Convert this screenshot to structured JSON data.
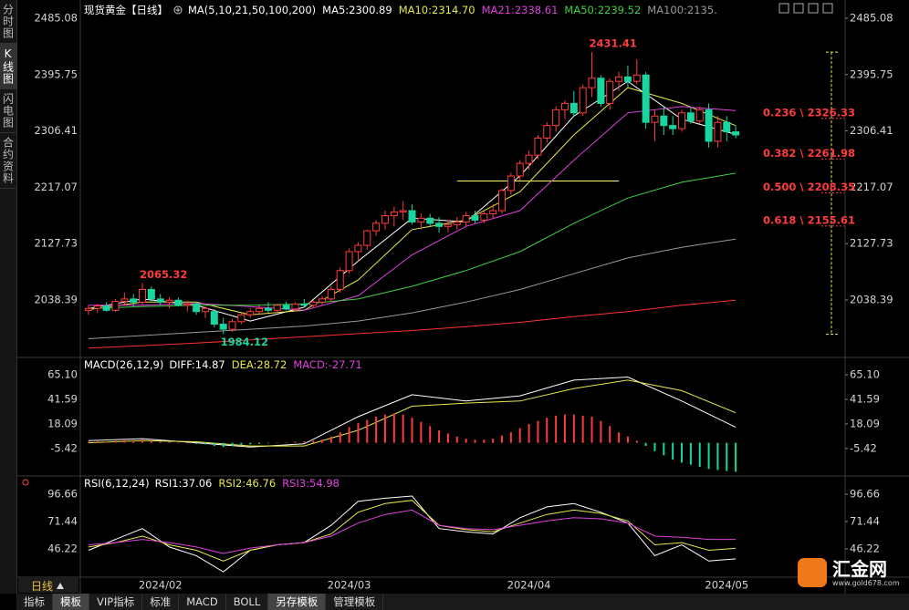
{
  "sidebar": [
    "分时图",
    "K线图",
    "闪电图",
    "合约资料"
  ],
  "chart_data": [
    {
      "type": "candlestick",
      "title": "现货黄金【日线】",
      "subtitle": "MA(5,10,21,50,100,200)",
      "categories": [
        null,
        null,
        null,
        null,
        null,
        null,
        null,
        null,
        "2024/02",
        null,
        null,
        null,
        null,
        null,
        null,
        null,
        null,
        null,
        null,
        null,
        null,
        null,
        null,
        null,
        null,
        null,
        null,
        null,
        null,
        "2024/03",
        null,
        null,
        null,
        null,
        null,
        null,
        null,
        null,
        null,
        null,
        null,
        null,
        null,
        null,
        null,
        null,
        null,
        null,
        null,
        "2024/04",
        null,
        null,
        null,
        null,
        null,
        null,
        null,
        null,
        null,
        null,
        null,
        null,
        null,
        null,
        null,
        null,
        null,
        null,
        null,
        null,
        null,
        "2024/05",
        null
      ],
      "ohlc": [
        [
          2022,
          2030,
          2015,
          2025
        ],
        [
          2025,
          2032,
          2018,
          2029
        ],
        [
          2029,
          2035,
          2020,
          2022
        ],
        [
          2022,
          2040,
          2020,
          2036
        ],
        [
          2036,
          2050,
          2030,
          2040
        ],
        [
          2040,
          2048,
          2028,
          2035
        ],
        [
          2035,
          2065.32,
          2030,
          2055
        ],
        [
          2055,
          2060,
          2035,
          2040
        ],
        [
          2040,
          2048,
          2030,
          2035
        ],
        [
          2035,
          2043,
          2025,
          2038
        ],
        [
          2038,
          2042,
          2028,
          2030
        ],
        [
          2030,
          2037,
          2020,
          2032
        ],
        [
          2032,
          2036,
          2015,
          2020
        ],
        [
          2020,
          2028,
          2010,
          2025
        ],
        [
          2020,
          2024,
          1995,
          2000
        ],
        [
          2000,
          2010,
          1984.12,
          1992
        ],
        [
          1992,
          2008,
          1988,
          2004
        ],
        [
          2004,
          2018,
          2000,
          2015
        ],
        [
          2015,
          2025,
          2010,
          2020
        ],
        [
          2020,
          2030,
          2015,
          2025
        ],
        [
          2025,
          2035,
          2018,
          2022
        ],
        [
          2022,
          2032,
          2018,
          2030
        ],
        [
          2030,
          2036,
          2022,
          2024
        ],
        [
          2024,
          2035,
          2020,
          2032
        ],
        [
          2032,
          2040,
          2026,
          2030
        ],
        [
          2030,
          2038,
          2025,
          2035
        ],
        [
          2035,
          2045,
          2030,
          2040
        ],
        [
          2040,
          2060,
          2036,
          2055
        ],
        [
          2055,
          2090,
          2050,
          2085
        ],
        [
          2085,
          2120,
          2080,
          2115
        ],
        [
          2115,
          2130,
          2100,
          2125
        ],
        [
          2125,
          2150,
          2118,
          2148
        ],
        [
          2148,
          2165,
          2140,
          2160
        ],
        [
          2160,
          2180,
          2150,
          2172
        ],
        [
          2172,
          2186,
          2155,
          2178
        ],
        [
          2178,
          2195,
          2165,
          2180
        ],
        [
          2180,
          2190,
          2158,
          2162
        ],
        [
          2162,
          2175,
          2150,
          2168
        ],
        [
          2168,
          2175,
          2155,
          2160
        ],
        [
          2160,
          2170,
          2145,
          2155
        ],
        [
          2155,
          2165,
          2146,
          2158
        ],
        [
          2158,
          2170,
          2150,
          2162
        ],
        [
          2162,
          2178,
          2155,
          2172
        ],
        [
          2172,
          2180,
          2160,
          2165
        ],
        [
          2165,
          2180,
          2160,
          2175
        ],
        [
          2175,
          2190,
          2168,
          2180
        ],
        [
          2180,
          2215,
          2175,
          2212
        ],
        [
          2212,
          2240,
          2205,
          2235
        ],
        [
          2235,
          2260,
          2228,
          2255
        ],
        [
          2255,
          2275,
          2245,
          2268
        ],
        [
          2268,
          2300,
          2262,
          2295
        ],
        [
          2295,
          2320,
          2288,
          2315
        ],
        [
          2315,
          2345,
          2305,
          2340
        ],
        [
          2340,
          2355,
          2325,
          2350
        ],
        [
          2350,
          2370,
          2330,
          2335
        ],
        [
          2335,
          2380,
          2330,
          2375
        ],
        [
          2375,
          2431.41,
          2360,
          2390
        ],
        [
          2390,
          2395,
          2345,
          2350
        ],
        [
          2350,
          2390,
          2340,
          2385
        ],
        [
          2385,
          2400,
          2370,
          2392
        ],
        [
          2392,
          2410,
          2375,
          2385
        ],
        [
          2385,
          2420,
          2380,
          2395
        ],
        [
          2395,
          2400,
          2310,
          2320
        ],
        [
          2320,
          2340,
          2290,
          2330
        ],
        [
          2330,
          2345,
          2300,
          2315
        ],
        [
          2315,
          2330,
          2300,
          2310
        ],
        [
          2310,
          2340,
          2305,
          2335
        ],
        [
          2335,
          2345,
          2318,
          2322
        ],
        [
          2322,
          2345,
          2318,
          2340
        ],
        [
          2340,
          2350,
          2280,
          2290
        ],
        [
          2290,
          2330,
          2280,
          2320
        ],
        [
          2320,
          2330,
          2290,
          2305
        ],
        [
          2305,
          2315,
          2295,
          2300
        ]
      ],
      "up_color": "#ff3c3c",
      "down_color": "#19d6a0",
      "ylim": [
        1950.2,
        2499.5
      ],
      "yticks": [
        2485.08,
        2395.75,
        2306.41,
        2217.07,
        2127.73,
        2038.39
      ],
      "series": [
        {
          "name": "MA5:2300.89",
          "color": "#ffffff",
          "x": [
            0,
            6,
            12,
            18,
            24,
            30,
            36,
            42,
            48,
            54,
            60,
            66,
            72
          ],
          "values": [
            2025,
            2040,
            2030,
            2005,
            2027,
            2100,
            2168,
            2162,
            2235,
            2330,
            2385,
            2325,
            2300.89
          ]
        },
        {
          "name": "MA10:2314.70",
          "color": "#e8e84a",
          "x": [
            0,
            6,
            12,
            18,
            24,
            30,
            36,
            42,
            48,
            54,
            60,
            66,
            72
          ],
          "values": [
            2023,
            2035,
            2035,
            2015,
            2022,
            2070,
            2150,
            2165,
            2210,
            2300,
            2375,
            2350,
            2314.7
          ]
        },
        {
          "name": "MA21:2338.61",
          "color": "#e040e0",
          "x": [
            0,
            6,
            12,
            18,
            24,
            30,
            36,
            42,
            48,
            54,
            60,
            66,
            72
          ],
          "values": [
            2030,
            2030,
            2033,
            2028,
            2022,
            2045,
            2110,
            2155,
            2180,
            2260,
            2335,
            2345,
            2338.61
          ]
        },
        {
          "name": "MA50:2239.52",
          "color": "#40d040",
          "x": [
            0,
            6,
            12,
            18,
            24,
            30,
            36,
            42,
            48,
            54,
            60,
            66,
            72
          ],
          "values": [
            2025,
            2028,
            2030,
            2030,
            2032,
            2040,
            2060,
            2085,
            2115,
            2160,
            2200,
            2225,
            2239.52
          ]
        },
        {
          "name": "MA100:2135.",
          "color": "#999999",
          "x": [
            0,
            6,
            12,
            18,
            24,
            30,
            36,
            42,
            48,
            54,
            60,
            66,
            72
          ],
          "values": [
            1977,
            1982,
            1987,
            1992,
            1997,
            2005,
            2018,
            2035,
            2055,
            2080,
            2105,
            2122,
            2135
          ]
        },
        {
          "color": "#ff3030",
          "x": [
            0,
            6,
            12,
            18,
            24,
            30,
            36,
            42,
            48,
            54,
            60,
            66,
            72
          ],
          "values": [
            1962,
            1966,
            1970,
            1975,
            1980,
            1985,
            1990,
            1996,
            2003,
            2012,
            2020,
            2030,
            2038
          ]
        }
      ],
      "annotations": [
        {
          "value": 2431.41,
          "x": 56,
          "color": "#ff3c3c"
        },
        {
          "value": 2065.32,
          "x": 6,
          "color": "#ff3c3c"
        },
        {
          "value": 1984.12,
          "x": 15,
          "color": "#19d6a0"
        }
      ],
      "fib_levels": [
        {
          "value": 2326.33,
          "label": "0.236 \\ 2326.33"
        },
        {
          "value": 2261.98,
          "label": "0.382 \\ 2261.98"
        },
        {
          "value": 2208.35,
          "label": "0.500 \\ 2208.35"
        },
        {
          "value": 2155.61,
          "label": "0.618 \\ 2155.61"
        }
      ],
      "fib_color": "#ff3c3c",
      "bracket_color": "#e8e84a",
      "hline": {
        "value": 2227,
        "from": 41,
        "to": 59,
        "color": "#ffff66"
      }
    },
    {
      "type": "macd",
      "title": "MACD(26,12,9)",
      "ylim": [
        -30,
        80
      ],
      "yticks": [
        {
          "value": 65.1,
          "label": "65.10"
        },
        41.59,
        18.09,
        -5.42
      ],
      "series": [
        {
          "name": "DIFF:14.87",
          "color": "#ffffff",
          "x": [
            0,
            6,
            12,
            18,
            24,
            30,
            36,
            42,
            48,
            54,
            60,
            66,
            72
          ],
          "values": [
            2,
            4,
            0,
            -4,
            -1,
            25,
            46,
            40,
            45,
            60,
            63,
            40,
            14.87
          ]
        },
        {
          "name": "DEA:28.72",
          "color": "#e8e84a",
          "x": [
            0,
            6,
            12,
            18,
            24,
            30,
            36,
            42,
            48,
            54,
            60,
            66,
            72
          ],
          "values": [
            0,
            2,
            1,
            -3,
            -3,
            12,
            35,
            38,
            40,
            52,
            60,
            50,
            28.72
          ]
        },
        {
          "name": "MACD:-27.71",
          "color": "#e040e0",
          "type": "histogram",
          "up_color": "#ff3c3c",
          "down_color": "#19d6a0",
          "values": [
            1,
            1.5,
            1,
            2,
            2.5,
            2,
            3,
            2,
            1,
            1,
            0.5,
            0,
            -1,
            -1.5,
            -3,
            -4,
            -3,
            -2,
            -1.5,
            -1,
            -0.5,
            0,
            0.5,
            1,
            1.5,
            2,
            3,
            6,
            10,
            15,
            19,
            22,
            25,
            27,
            28,
            27,
            24,
            20,
            16,
            12,
            9,
            6,
            4,
            3,
            3,
            4,
            7,
            10,
            14,
            18,
            21,
            24,
            26,
            27,
            27,
            26,
            25,
            21,
            16,
            10,
            6,
            2,
            -3,
            -8,
            -12,
            -16,
            -19,
            -21,
            -23,
            -25,
            -26,
            -27,
            -27.71
          ]
        }
      ]
    },
    {
      "type": "line",
      "title": "RSI(6,12,24)",
      "ylim": [
        21,
        111.8
      ],
      "yticks": [
        96.66,
        71.44,
        46.22
      ],
      "series": [
        {
          "name": "RSI1:37.06",
          "color": "#ffffff",
          "x": [
            0,
            3,
            6,
            9,
            12,
            15,
            18,
            21,
            24,
            27,
            30,
            33,
            36,
            39,
            42,
            45,
            48,
            51,
            54,
            57,
            60,
            63,
            66,
            69,
            72
          ],
          "values": [
            45,
            55,
            65,
            48,
            40,
            25,
            45,
            50,
            52,
            68,
            90,
            93,
            95,
            65,
            62,
            60,
            75,
            85,
            88,
            80,
            70,
            40,
            50,
            35,
            37.06
          ]
        },
        {
          "name": "RSI2:46.76",
          "color": "#e8e84a",
          "x": [
            0,
            3,
            6,
            9,
            12,
            15,
            18,
            21,
            24,
            27,
            30,
            33,
            36,
            39,
            42,
            45,
            48,
            51,
            54,
            57,
            60,
            63,
            66,
            69,
            72
          ],
          "values": [
            48,
            52,
            58,
            50,
            45,
            35,
            45,
            50,
            52,
            60,
            80,
            88,
            91,
            68,
            64,
            62,
            70,
            78,
            82,
            79,
            72,
            50,
            52,
            45,
            46.76
          ]
        },
        {
          "name": "RSI3:54.98",
          "color": "#e040e0",
          "x": [
            0,
            3,
            6,
            9,
            12,
            15,
            18,
            21,
            24,
            27,
            30,
            33,
            36,
            39,
            42,
            45,
            48,
            51,
            54,
            57,
            60,
            63,
            66,
            69,
            72
          ],
          "values": [
            50,
            52,
            55,
            52,
            48,
            42,
            47,
            50,
            52,
            58,
            70,
            78,
            82,
            68,
            65,
            64,
            68,
            72,
            75,
            74,
            70,
            58,
            57,
            55,
            54.98
          ]
        }
      ]
    }
  ],
  "period": "日线",
  "toolbar": [
    "指标",
    "模板",
    "VIP指标",
    "标准",
    "MACD",
    "BOLL",
    "另存模板",
    "管理模板"
  ],
  "watermark": {
    "name": "汇金网",
    "url": "www.gold678.com"
  }
}
